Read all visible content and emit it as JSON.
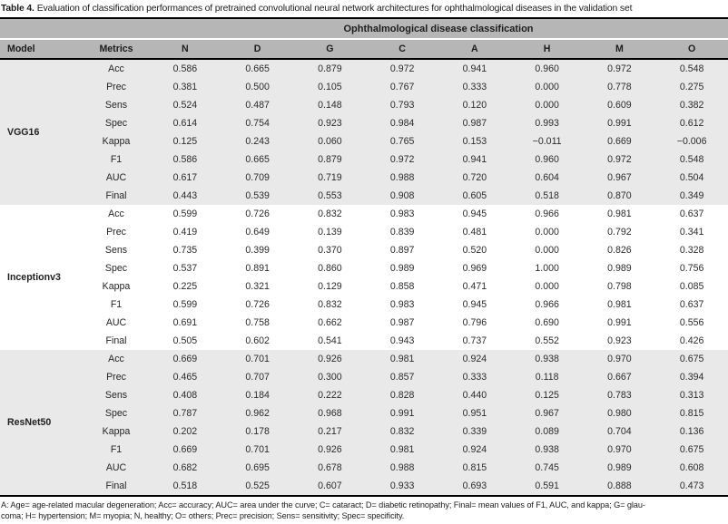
{
  "title": {
    "label": "Table 4.",
    "text": "Evaluation of classification performances of pretrained convolutional neural network architectures for ophthalmological diseases in the validation set"
  },
  "colors": {
    "header_gray": "#b6b6b6",
    "band_gray": "#e9e9e9",
    "rule_black": "#000000"
  },
  "table": {
    "group_header": "Ophthalmological disease classification",
    "columns": [
      "Model",
      "Metrics",
      "N",
      "D",
      "G",
      "C",
      "A",
      "H",
      "M",
      "O"
    ],
    "sections": [
      {
        "model": "VGG16",
        "rows": [
          {
            "metric": "Acc",
            "values": [
              "0.586",
              "0.665",
              "0.879",
              "0.972",
              "0.941",
              "0.960",
              "0.972",
              "0.548"
            ]
          },
          {
            "metric": "Prec",
            "values": [
              "0.381",
              "0.500",
              "0.105",
              "0.767",
              "0.333",
              "0.000",
              "0.778",
              "0.275"
            ]
          },
          {
            "metric": "Sens",
            "values": [
              "0.524",
              "0.487",
              "0.148",
              "0.793",
              "0.120",
              "0.000",
              "0.609",
              "0.382"
            ]
          },
          {
            "metric": "Spec",
            "values": [
              "0.614",
              "0.754",
              "0.923",
              "0.984",
              "0.987",
              "0.993",
              "0.991",
              "0.612"
            ]
          },
          {
            "metric": "Kappa",
            "values": [
              "0.125",
              "0.243",
              "0.060",
              "0.765",
              "0.153",
              "−0.011",
              "0.669",
              "−0.006"
            ]
          },
          {
            "metric": "F1",
            "values": [
              "0.586",
              "0.665",
              "0.879",
              "0.972",
              "0.941",
              "0.960",
              "0.972",
              "0.548"
            ]
          },
          {
            "metric": "AUC",
            "values": [
              "0.617",
              "0.709",
              "0.719",
              "0.988",
              "0.720",
              "0.604",
              "0.967",
              "0.504"
            ]
          },
          {
            "metric": "Final",
            "values": [
              "0.443",
              "0.539",
              "0.553",
              "0.908",
              "0.605",
              "0.518",
              "0.870",
              "0.349"
            ]
          }
        ]
      },
      {
        "model": "Inceptionv3",
        "rows": [
          {
            "metric": "Acc",
            "values": [
              "0.599",
              "0.726",
              "0.832",
              "0.983",
              "0.945",
              "0.966",
              "0.981",
              "0.637"
            ]
          },
          {
            "metric": "Prec",
            "values": [
              "0.419",
              "0.649",
              "0.139",
              "0.839",
              "0.481",
              "0.000",
              "0.792",
              "0.341"
            ]
          },
          {
            "metric": "Sens",
            "values": [
              "0.735",
              "0.399",
              "0.370",
              "0.897",
              "0.520",
              "0.000",
              "0.826",
              "0.328"
            ]
          },
          {
            "metric": "Spec",
            "values": [
              "0.537",
              "0.891",
              "0.860",
              "0.989",
              "0.969",
              "1.000",
              "0.989",
              "0.756"
            ]
          },
          {
            "metric": "Kappa",
            "values": [
              "0.225",
              "0.321",
              "0.129",
              "0.858",
              "0.471",
              "0.000",
              "0.798",
              "0.085"
            ]
          },
          {
            "metric": "F1",
            "values": [
              "0.599",
              "0.726",
              "0.832",
              "0.983",
              "0.945",
              "0.966",
              "0.981",
              "0.637"
            ]
          },
          {
            "metric": "AUC",
            "values": [
              "0.691",
              "0.758",
              "0.662",
              "0.987",
              "0.796",
              "0.690",
              "0.991",
              "0.556"
            ]
          },
          {
            "metric": "Final",
            "values": [
              "0.505",
              "0.602",
              "0.541",
              "0.943",
              "0.737",
              "0.552",
              "0.923",
              "0.426"
            ]
          }
        ]
      },
      {
        "model": "ResNet50",
        "rows": [
          {
            "metric": "Acc",
            "values": [
              "0.669",
              "0.701",
              "0.926",
              "0.981",
              "0.924",
              "0.938",
              "0.970",
              "0.675"
            ]
          },
          {
            "metric": "Prec",
            "values": [
              "0.465",
              "0.707",
              "0.300",
              "0.857",
              "0.333",
              "0.118",
              "0.667",
              "0.394"
            ]
          },
          {
            "metric": "Sens",
            "values": [
              "0.408",
              "0.184",
              "0.222",
              "0.828",
              "0.440",
              "0.125",
              "0.783",
              "0.313"
            ]
          },
          {
            "metric": "Spec",
            "values": [
              "0.787",
              "0.962",
              "0.968",
              "0.991",
              "0.951",
              "0.967",
              "0.980",
              "0.815"
            ]
          },
          {
            "metric": "Kappa",
            "values": [
              "0.202",
              "0.178",
              "0.217",
              "0.832",
              "0.339",
              "0.089",
              "0.704",
              "0.136"
            ]
          },
          {
            "metric": "F1",
            "values": [
              "0.669",
              "0.701",
              "0.926",
              "0.981",
              "0.924",
              "0.938",
              "0.970",
              "0.675"
            ]
          },
          {
            "metric": "AUC",
            "values": [
              "0.682",
              "0.695",
              "0.678",
              "0.988",
              "0.815",
              "0.745",
              "0.989",
              "0.608"
            ]
          },
          {
            "metric": "Final",
            "values": [
              "0.518",
              "0.525",
              "0.607",
              "0.933",
              "0.693",
              "0.591",
              "0.888",
              "0.473"
            ]
          }
        ]
      }
    ]
  },
  "footnote": {
    "line1": "A: Age= age-related macular degeneration; Acc= accuracy; AUC= area under the curve; C= cataract; D= diabetic retinopathy; Final= mean values of F1, AUC, and kappa; G= glau-",
    "line2": "coma; H= hypertension; M= myopia; N, healthy; O= others; Prec= precision; Sens= sensitivity; Spec= specificity."
  }
}
